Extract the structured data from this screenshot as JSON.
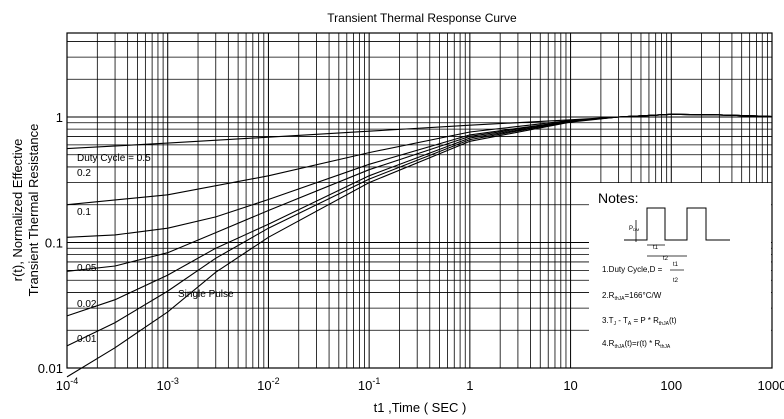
{
  "chart_data": {
    "type": "line",
    "title": "Transient Thermal Response Curve",
    "xlabel": "t1 ,Time ( SEC )",
    "ylabel": [
      "r(t), Normalized Effective",
      "Transient Thermal Resistance"
    ],
    "xscale": "log",
    "yscale": "log",
    "xlim": [
      0.0001,
      1000
    ],
    "ylim": [
      0.01,
      2
    ],
    "grid": true,
    "x_ticks": [
      {
        "value": 0.0001,
        "base": "10",
        "exp": "-4"
      },
      {
        "value": 0.001,
        "base": "10",
        "exp": "-3"
      },
      {
        "value": 0.01,
        "base": "10",
        "exp": "-2"
      },
      {
        "value": 0.1,
        "base": "10",
        "exp": "-1"
      },
      {
        "value": 1,
        "base": "1",
        "exp": ""
      },
      {
        "value": 10,
        "base": "10",
        "exp": ""
      },
      {
        "value": 100,
        "base": "100",
        "exp": ""
      },
      {
        "value": 1000,
        "base": "1000",
        "exp": ""
      }
    ],
    "y_ticks": [
      {
        "value": 1,
        "label": "1"
      },
      {
        "value": 0.1,
        "label": "0.1"
      },
      {
        "value": 0.01,
        "label": "0.01"
      }
    ],
    "series": [
      {
        "name": "Duty Cycle = 0.5",
        "x": [
          0.0001,
          0.001,
          0.01,
          0.1,
          1,
          10,
          30,
          100,
          300,
          1000
        ],
        "y": [
          0.56,
          0.62,
          0.69,
          0.77,
          0.86,
          0.95,
          1.0,
          1.05,
          1.04,
          1.01
        ]
      },
      {
        "name": "0.2",
        "x": [
          0.0001,
          0.001,
          0.01,
          0.1,
          1,
          10,
          30,
          100,
          300,
          1000
        ],
        "y": [
          0.2,
          0.24,
          0.34,
          0.52,
          0.76,
          0.94,
          1.0,
          1.05,
          1.04,
          1.01
        ]
      },
      {
        "name": "0.1",
        "x": [
          0.0001,
          0.0003,
          0.001,
          0.003,
          0.01,
          0.1,
          1,
          10,
          30,
          100,
          300,
          1000
        ],
        "y": [
          0.11,
          0.115,
          0.13,
          0.16,
          0.22,
          0.42,
          0.72,
          0.93,
          1.0,
          1.05,
          1.04,
          1.01
        ]
      },
      {
        "name": "0.05",
        "x": [
          0.0001,
          0.0003,
          0.001,
          0.003,
          0.01,
          0.1,
          1,
          10,
          30,
          100,
          300,
          1000
        ],
        "y": [
          0.059,
          0.065,
          0.083,
          0.12,
          0.18,
          0.38,
          0.7,
          0.93,
          1.0,
          1.05,
          1.04,
          1.01
        ]
      },
      {
        "name": "0.02",
        "x": [
          0.0001,
          0.0003,
          0.001,
          0.003,
          0.01,
          0.1,
          1,
          10,
          30,
          100,
          300,
          1000
        ],
        "y": [
          0.026,
          0.035,
          0.055,
          0.09,
          0.14,
          0.34,
          0.68,
          0.92,
          1.0,
          1.05,
          1.04,
          1.01
        ]
      },
      {
        "name": "0.01",
        "x": [
          0.0001,
          0.0003,
          0.001,
          0.003,
          0.01,
          0.1,
          1,
          10,
          30,
          100,
          300,
          1000
        ],
        "y": [
          0.015,
          0.023,
          0.041,
          0.075,
          0.13,
          0.32,
          0.66,
          0.92,
          1.0,
          1.05,
          1.04,
          1.01
        ]
      },
      {
        "name": "Single Pulse",
        "x": [
          0.0001,
          0.0003,
          0.001,
          0.003,
          0.01,
          0.1,
          1,
          10,
          30,
          100,
          300,
          1000
        ],
        "y": [
          0.0085,
          0.0145,
          0.028,
          0.058,
          0.11,
          0.3,
          0.64,
          0.91,
          1.0,
          1.05,
          1.04,
          1.01
        ]
      }
    ],
    "annotations": {
      "notes_title": "Notes:",
      "p_dm": "P",
      "p_dm_sub": "DM",
      "t1": "t1",
      "t2": "t2",
      "note1_prefix": "1.Duty Cycle,D =",
      "note1_num": "t1",
      "note1_den": "t2",
      "note2": "2.R",
      "note2_sub": "thJA",
      "note2_tail": "=166°C/W",
      "note3_a": "3.T",
      "note3_a_sub": "J",
      "note3_b": " - T",
      "note3_b_sub": "A",
      "note3_c": " = P * R",
      "note3_c_sub": "thJA",
      "note3_d": "(t)",
      "note4_a": "4.R",
      "note4_a_sub": "thJA",
      "note4_b": "(t)=r(t) * R",
      "note4_b_sub": "thJA"
    }
  }
}
